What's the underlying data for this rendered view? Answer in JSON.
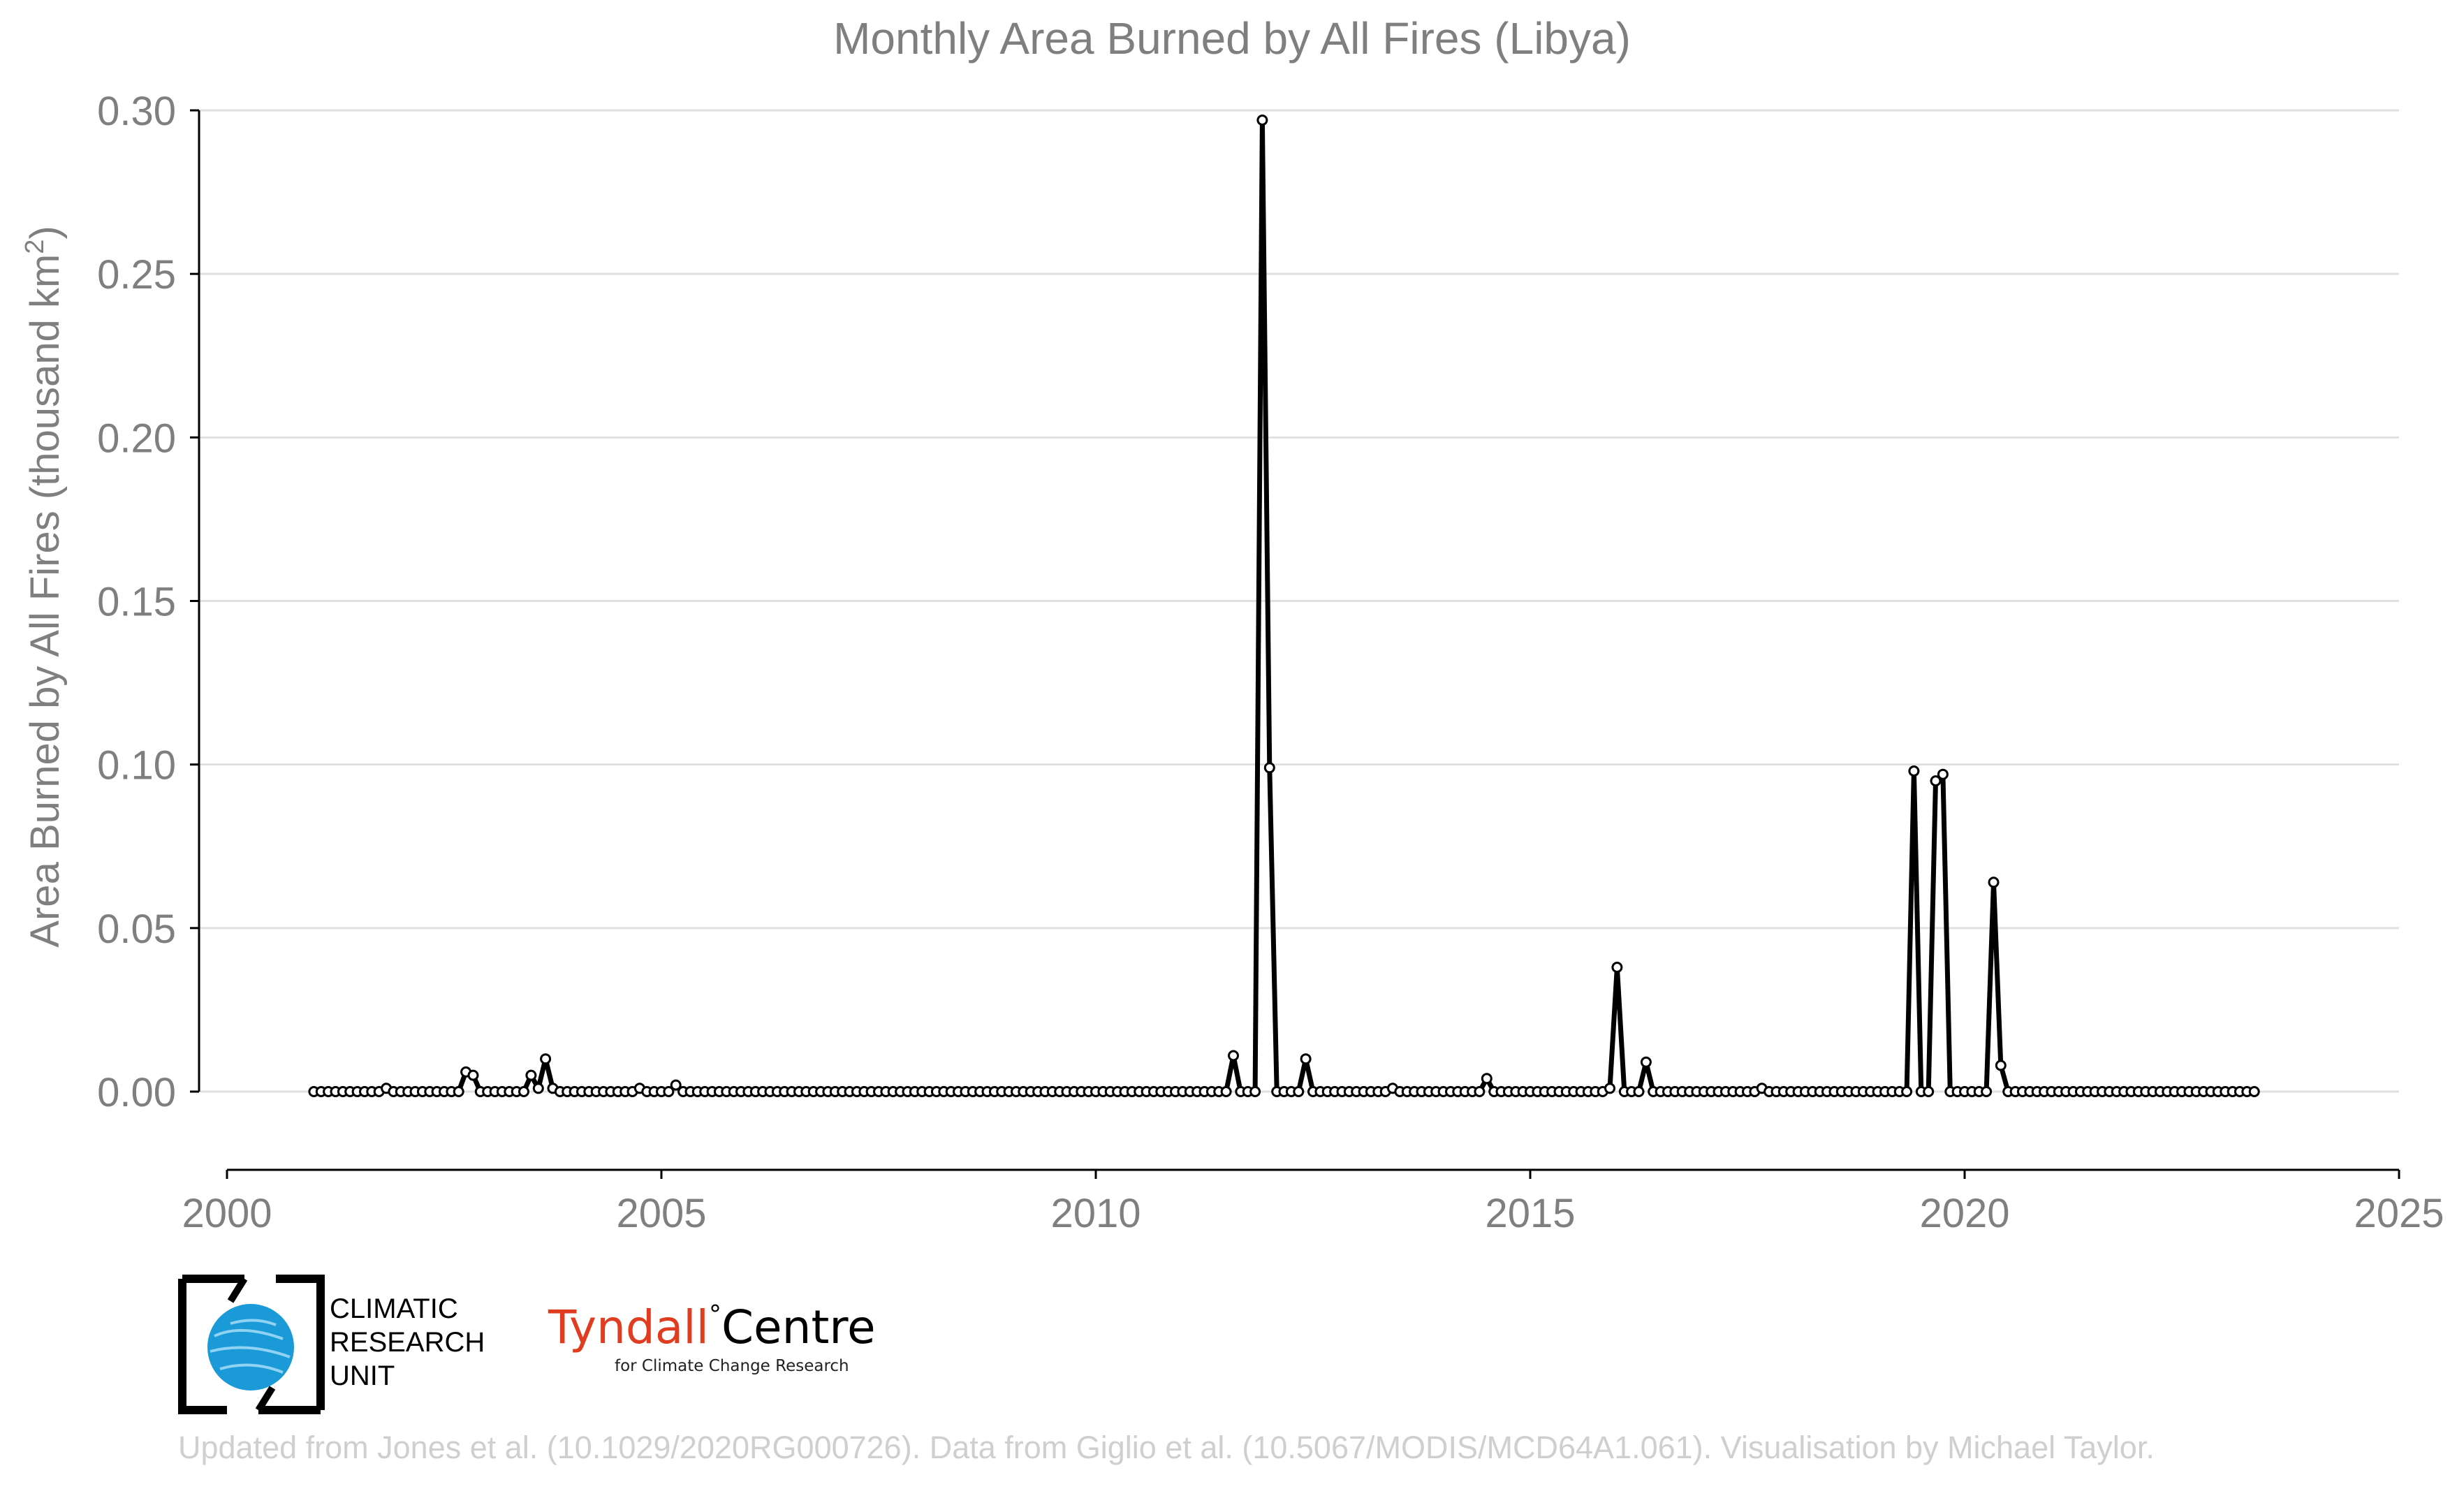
{
  "chart_data": {
    "type": "line",
    "title": "Monthly Area Burned by All Fires (Libya)",
    "ylabel_prefix": "Area Burned by All Fires (thousand km",
    "ylabel_sup": "2",
    "ylabel_suffix": ")",
    "xlabel": "",
    "xlim": [
      2000,
      2025
    ],
    "ylim": [
      -0.0244,
      0.3
    ],
    "xticks": [
      "2000",
      "2005",
      "2010",
      "2015",
      "2020",
      "2025"
    ],
    "xtick_values": [
      2000,
      2005,
      2010,
      2015,
      2020,
      2025
    ],
    "yticks": [
      "0.00",
      "0.05",
      "0.10",
      "0.15",
      "0.20",
      "0.25",
      "0.30"
    ],
    "ytick_values": [
      0,
      0.05,
      0.1,
      0.15,
      0.2,
      0.25,
      0.3
    ],
    "grid": "horizontal",
    "series": [
      {
        "start": "2001-01",
        "end": "2023-05",
        "frequency": "monthly",
        "line_color": "#000000",
        "marker_fill": "#ffffff",
        "nonzero_values": {
          "2001-11": 0.001,
          "2002-10": 0.006,
          "2002-11": 0.005,
          "2003-07": 0.005,
          "2003-08": 0.001,
          "2003-09": 0.01,
          "2003-10": 0.001,
          "2004-10": 0.001,
          "2005-03": 0.002,
          "2011-08": 0.011,
          "2011-12": 0.297,
          "2012-01": 0.099,
          "2012-06": 0.01,
          "2013-06": 0.001,
          "2014-07": 0.004,
          "2015-12": 0.001,
          "2016-01": 0.038,
          "2016-05": 0.009,
          "2017-09": 0.001,
          "2019-06": 0.098,
          "2019-09": 0.095,
          "2019-10": 0.097,
          "2020-05": 0.064,
          "2020-06": 0.008
        }
      }
    ]
  },
  "logos": {
    "cru_line1": "CLIMATIC",
    "cru_line2": "RESEARCH",
    "cru_line3": "UNIT",
    "tyndall_red": "Tyndall",
    "tyndall_degree": "°",
    "tyndall_black": "Centre",
    "tyndall_sub": "for Climate Change Research"
  },
  "credit": "Updated from Jones et al. (10.1029/2020RG000726). Data from Giglio et al. (10.5067/MODIS/MCD64A1.061). Visualisation by Michael Taylor.",
  "colors": {
    "text_grey": "#7f7f7f",
    "grid": "#e0e0e0",
    "axis": "#000000",
    "credit": "#cfcfcf",
    "cru_blue": "#1a9ad6",
    "tyndall_red": "#e03c1f"
  }
}
